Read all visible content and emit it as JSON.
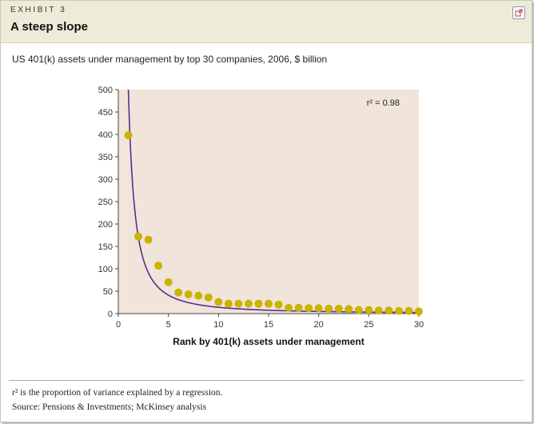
{
  "header": {
    "eyebrow": "EXHIBIT 3",
    "title": "A steep slope",
    "expand_icon": "expand-window-icon"
  },
  "subtitle": "US 401(k) assets under management by top 30 companies, 2006, $ billion",
  "chart_data": {
    "type": "scatter",
    "title": "",
    "xlabel": "Rank by 401(k) assets under management",
    "ylabel": "",
    "xlim": [
      0,
      30
    ],
    "ylim": [
      0,
      500
    ],
    "xticks": [
      0,
      5,
      10,
      15,
      20,
      25,
      30
    ],
    "yticks": [
      0,
      50,
      100,
      150,
      200,
      250,
      300,
      350,
      400,
      450,
      500
    ],
    "grid": false,
    "annotation": "r² = 0.98",
    "colors": {
      "points": "#c9b400",
      "fit_line": "#5b2d8e",
      "plot_bg": "#f1e4da"
    },
    "series": [
      {
        "values": [
          {
            "x": 1,
            "y": 398
          },
          {
            "x": 2,
            "y": 172
          },
          {
            "x": 3,
            "y": 165
          },
          {
            "x": 4,
            "y": 107
          },
          {
            "x": 5,
            "y": 70
          },
          {
            "x": 6,
            "y": 47
          },
          {
            "x": 7,
            "y": 43
          },
          {
            "x": 8,
            "y": 40
          },
          {
            "x": 9,
            "y": 36
          },
          {
            "x": 10,
            "y": 26
          },
          {
            "x": 11,
            "y": 22
          },
          {
            "x": 12,
            "y": 22
          },
          {
            "x": 13,
            "y": 22
          },
          {
            "x": 14,
            "y": 22
          },
          {
            "x": 15,
            "y": 22
          },
          {
            "x": 16,
            "y": 20
          },
          {
            "x": 17,
            "y": 13
          },
          {
            "x": 18,
            "y": 13
          },
          {
            "x": 19,
            "y": 12
          },
          {
            "x": 20,
            "y": 12
          },
          {
            "x": 21,
            "y": 11
          },
          {
            "x": 22,
            "y": 11
          },
          {
            "x": 23,
            "y": 10
          },
          {
            "x": 24,
            "y": 8
          },
          {
            "x": 25,
            "y": 8
          },
          {
            "x": 26,
            "y": 7
          },
          {
            "x": 27,
            "y": 7
          },
          {
            "x": 28,
            "y": 6
          },
          {
            "x": 29,
            "y": 6
          },
          {
            "x": 30,
            "y": 5
          }
        ]
      }
    ]
  },
  "footnote": "r² is the proportion of variance explained by a regression.",
  "source": "Source: Pensions & Investments; McKinsey analysis"
}
